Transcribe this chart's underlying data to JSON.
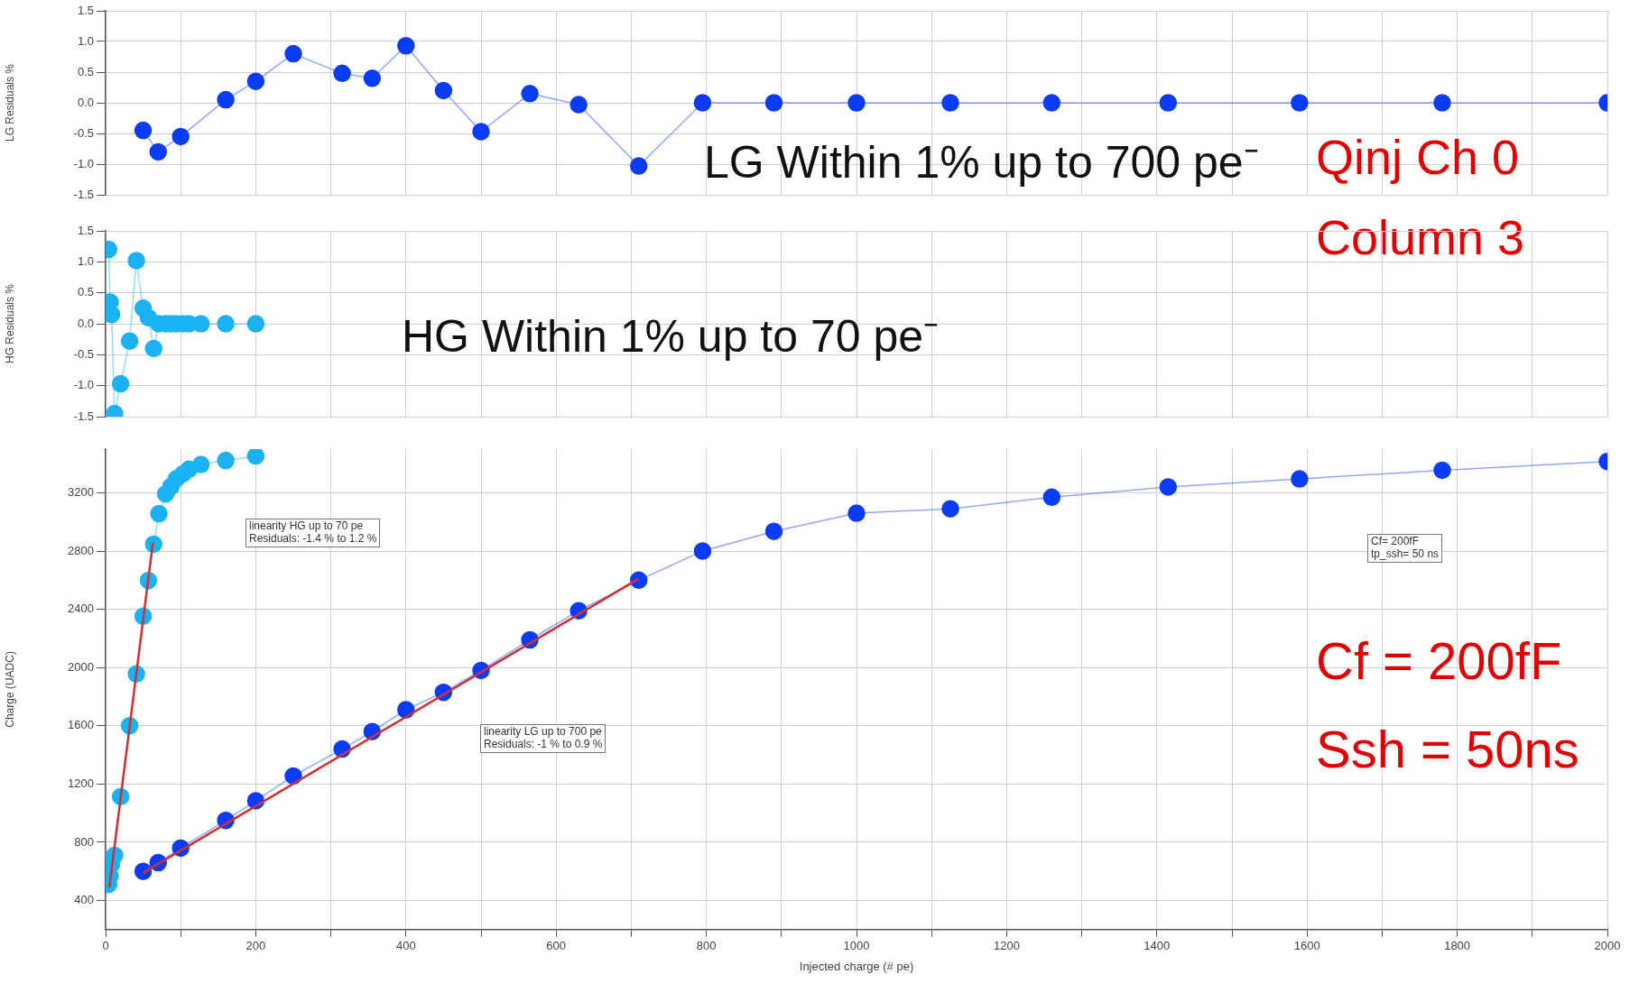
{
  "chart_data": [
    {
      "type": "line",
      "ylabel": "LG Residuals %",
      "xlim": [
        0,
        2000
      ],
      "ylim": [
        -1.5,
        1.5
      ],
      "xticks": [
        {
          "value": 0,
          "label": null
        },
        {
          "value": 100,
          "label": null
        },
        {
          "value": 200,
          "label": null
        },
        {
          "value": 300,
          "label": null
        },
        {
          "value": 400,
          "label": null
        },
        {
          "value": 500,
          "label": null
        },
        {
          "value": 600,
          "label": null
        },
        {
          "value": 700,
          "label": null
        },
        {
          "value": 800,
          "label": null
        },
        {
          "value": 900,
          "label": null
        },
        {
          "value": 1000,
          "label": null
        },
        {
          "value": 1100,
          "label": null
        },
        {
          "value": 1200,
          "label": null
        },
        {
          "value": 1300,
          "label": null
        },
        {
          "value": 1400,
          "label": null
        },
        {
          "value": 1500,
          "label": null
        },
        {
          "value": 1600,
          "label": null
        },
        {
          "value": 1700,
          "label": null
        },
        {
          "value": 1800,
          "label": null
        },
        {
          "value": 1900,
          "label": null
        },
        {
          "value": 2000,
          "label": null
        }
      ],
      "yticks": [
        {
          "value": -1.5,
          "label": "-1.5"
        },
        {
          "value": -1,
          "label": "-1.0"
        },
        {
          "value": -0.5,
          "label": "-0.5"
        },
        {
          "value": 0,
          "label": "0.0"
        },
        {
          "value": 0.5,
          "label": "0.5"
        },
        {
          "value": 1,
          "label": "1.0"
        },
        {
          "value": 1.5,
          "label": "1.5"
        }
      ],
      "tick_labels": "y",
      "grid": true,
      "marker": "circle",
      "series": [
        {
          "color": "#0a3cf5",
          "x": [
            50,
            70,
            100,
            160,
            200,
            250,
            315,
            355,
            400,
            450,
            500,
            565,
            630,
            710,
            795,
            890,
            1000,
            1125,
            1260,
            1415,
            1590,
            1780,
            2000
          ],
          "values": [
            -0.45,
            -0.8,
            -0.55,
            0.05,
            0.35,
            0.8,
            0.48,
            0.4,
            0.93,
            0.2,
            -0.47,
            0.15,
            -0.03,
            -1.03,
            0,
            0,
            0,
            0,
            0,
            0,
            0,
            0,
            0
          ]
        }
      ],
      "annotations": [
        "LG Within 1% up to 700 pe⁻",
        "Qinj Ch 0",
        "Column 3"
      ]
    },
    {
      "type": "line",
      "ylabel": "HG Residuals %",
      "xlim": [
        0,
        2000
      ],
      "ylim": [
        -1.5,
        1.5
      ],
      "xticks": [
        {
          "value": 0,
          "label": null
        },
        {
          "value": 100,
          "label": null
        },
        {
          "value": 200,
          "label": null
        },
        {
          "value": 300,
          "label": null
        },
        {
          "value": 400,
          "label": null
        },
        {
          "value": 500,
          "label": null
        },
        {
          "value": 600,
          "label": null
        },
        {
          "value": 700,
          "label": null
        },
        {
          "value": 800,
          "label": null
        },
        {
          "value": 900,
          "label": null
        },
        {
          "value": 1000,
          "label": null
        },
        {
          "value": 1100,
          "label": null
        },
        {
          "value": 1200,
          "label": null
        },
        {
          "value": 1300,
          "label": null
        },
        {
          "value": 1400,
          "label": null
        },
        {
          "value": 1500,
          "label": null
        },
        {
          "value": 1600,
          "label": null
        },
        {
          "value": 1700,
          "label": null
        },
        {
          "value": 1800,
          "label": null
        },
        {
          "value": 1900,
          "label": null
        },
        {
          "value": 2000,
          "label": null
        }
      ],
      "yticks": [
        {
          "value": -1.5,
          "label": "-1.5"
        },
        {
          "value": -1,
          "label": "-1.0"
        },
        {
          "value": -0.5,
          "label": "-0.5"
        },
        {
          "value": 0,
          "label": "0.0"
        },
        {
          "value": 0.5,
          "label": "0.5"
        },
        {
          "value": 1,
          "label": "1.0"
        },
        {
          "value": 1.5,
          "label": "1.5"
        }
      ],
      "tick_labels": "y",
      "grid": true,
      "marker": "circle",
      "series": [
        {
          "color": "#1ab2f2",
          "x": [
            4,
            6,
            8,
            12,
            20,
            32,
            41,
            50,
            57,
            64,
            71,
            80,
            87,
            94,
            103,
            111,
            127,
            160,
            200
          ],
          "values": [
            1.2,
            0.35,
            0.15,
            -1.45,
            -0.97,
            -0.28,
            1.02,
            0.25,
            0.1,
            -0.4,
            0,
            0,
            0,
            0,
            0,
            0,
            0,
            0,
            0
          ]
        }
      ],
      "annotations": [
        "HG Within 1% up to 70 pe⁻"
      ]
    },
    {
      "type": "line",
      "xlabel": "Injected charge (# pe)",
      "ylabel": "Charge (UADC)",
      "xlim": [
        0,
        2000
      ],
      "ylim": [
        200,
        3500
      ],
      "xticks": [
        0,
        {
          "value": 100,
          "label": null
        },
        200,
        {
          "value": 300,
          "label": null
        },
        400,
        {
          "value": 500,
          "label": null
        },
        600,
        {
          "value": 700,
          "label": null
        },
        800,
        {
          "value": 900,
          "label": null
        },
        1000,
        {
          "value": 1100,
          "label": null
        },
        1200,
        {
          "value": 1300,
          "label": null
        },
        1400,
        {
          "value": 1500,
          "label": null
        },
        1600,
        {
          "value": 1700,
          "label": null
        },
        1800,
        {
          "value": 1900,
          "label": null
        },
        2000
      ],
      "yticks": [
        400,
        800,
        1200,
        1600,
        2000,
        2400,
        2800,
        3200
      ],
      "grid": true,
      "marker": "circle",
      "series": [
        {
          "color": "#1ab2f2",
          "x": [
            4,
            6,
            8,
            12,
            20,
            32,
            41,
            50,
            57,
            64,
            71,
            80,
            87,
            94,
            103,
            111,
            127,
            160,
            200
          ],
          "values": [
            511,
            570,
            650,
            710,
            1113,
            1600,
            1956,
            2352,
            2598,
            2847,
            3057,
            3192,
            3243,
            3295,
            3330,
            3362,
            3394,
            3422,
            3453
          ]
        },
        {
          "color": "#0a3cf5",
          "x": [
            50,
            70,
            100,
            160,
            200,
            250,
            315,
            355,
            400,
            450,
            500,
            565,
            630,
            710,
            795,
            890,
            1000,
            1125,
            1260,
            1415,
            1590,
            1780,
            2000
          ],
          "values": [
            600,
            660,
            760,
            950,
            1085,
            1255,
            1440,
            1560,
            1710,
            1830,
            1980,
            2190,
            2390,
            2600,
            2800,
            2935,
            3060,
            3090,
            3170,
            3240,
            3295,
            3355,
            3415
          ]
        },
        {
          "color": "#d03030",
          "marker": "none",
          "x": [
            5,
            63
          ],
          "values": [
            490,
            2860
          ]
        },
        {
          "color": "#d03030",
          "marker": "none",
          "x": [
            50,
            710
          ],
          "values": [
            590,
            2610
          ]
        }
      ],
      "annotations": [
        "linearity HG up to 70 pe\nResiduals: -1.4 % to 1.2 %",
        "linearity LG up to 700 pe\nResiduals: -1 % to 0.9 %",
        "Cf= 200fF\ntp_ssh= 50 ns",
        "Cf = 200fF",
        "Ssh = 50ns"
      ]
    }
  ]
}
